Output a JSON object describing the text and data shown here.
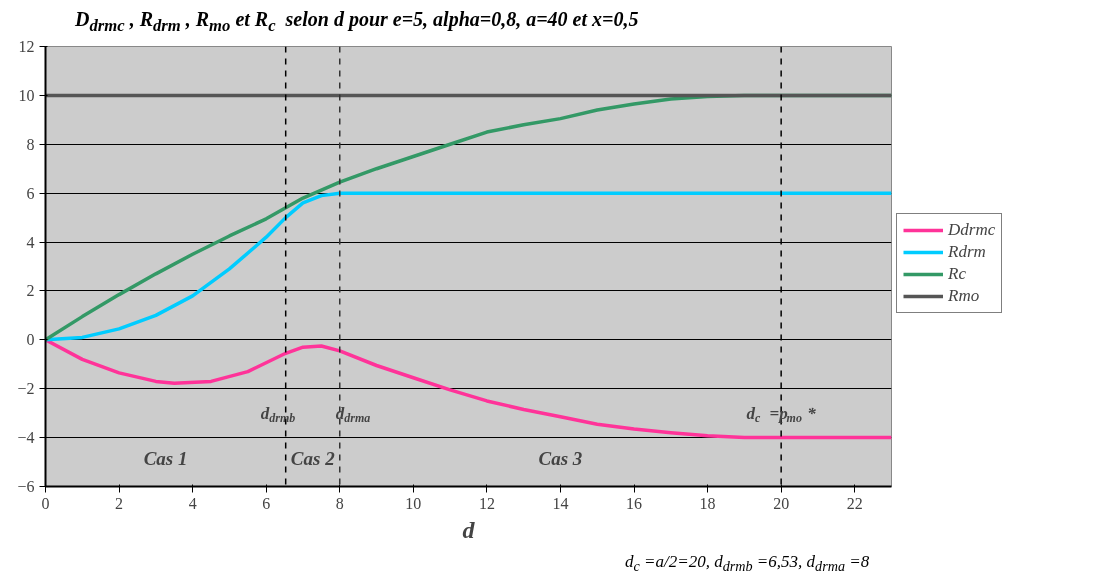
{
  "chart_data": {
    "type": "line",
    "title": "D$_{drmc}$ , R$_{drm}$ , R$_{mo}$ et R$_{c}$  selon d pour e=5, alpha=0,8, a=40 et x=0,5",
    "xlabel": "d",
    "xlim": [
      0,
      23
    ],
    "xticks": [
      0,
      2,
      4,
      6,
      8,
      10,
      12,
      14,
      16,
      18,
      20,
      22
    ],
    "ylim": [
      -6,
      12
    ],
    "yticks": [
      -6,
      -4,
      -2,
      0,
      2,
      4,
      6,
      8,
      10,
      12
    ],
    "grid": "y",
    "legend": "right",
    "line_style": "solid",
    "marker": "none",
    "series": [
      {
        "name": "Ddrmc",
        "color": "#ff3399",
        "x": [
          0,
          1,
          2,
          3,
          3.5,
          4.5,
          5.5,
          6.53,
          7,
          7.5,
          8,
          9,
          10,
          11,
          12,
          13,
          14,
          15,
          16,
          17,
          18,
          19,
          23
        ],
        "values": [
          0,
          -0.8,
          -1.35,
          -1.7,
          -1.78,
          -1.7,
          -1.3,
          -0.55,
          -0.3,
          -0.25,
          -0.45,
          -1.05,
          -1.55,
          -2.05,
          -2.5,
          -2.85,
          -3.15,
          -3.45,
          -3.65,
          -3.8,
          -3.92,
          -4,
          -4
        ]
      },
      {
        "name": "Rdrm",
        "color": "#00ccff",
        "x": [
          0,
          1,
          2,
          3,
          4,
          5,
          6,
          6.53,
          7,
          7.5,
          8,
          23
        ],
        "values": [
          0,
          0.1,
          0.45,
          1.0,
          1.8,
          2.9,
          4.2,
          5.0,
          5.6,
          5.9,
          6,
          6
        ]
      },
      {
        "name": "Rc",
        "color": "#339966",
        "x": [
          0,
          1,
          2,
          3,
          4,
          5,
          6,
          6.53,
          7,
          8,
          9,
          10,
          11,
          12,
          13,
          14,
          15,
          16,
          17,
          18,
          19,
          23
        ],
        "values": [
          0,
          0.95,
          1.85,
          2.7,
          3.5,
          4.25,
          4.95,
          5.4,
          5.8,
          6.45,
          7.0,
          7.5,
          8.0,
          8.5,
          8.8,
          9.05,
          9.4,
          9.65,
          9.85,
          9.95,
          10,
          10
        ]
      },
      {
        "name": "Rmo",
        "color": "#555555",
        "x": [
          0,
          23
        ],
        "values": [
          10,
          10
        ]
      }
    ],
    "ref_lines": [
      {
        "axis": "x",
        "value": 6.53,
        "label": "d$_{drmb}$",
        "line_style": "dashed",
        "color": "#000000"
      },
      {
        "axis": "x",
        "value": 8,
        "label": "d$_{drma}$",
        "line_style": "dashed",
        "color": "#333333"
      },
      {
        "axis": "x",
        "value": 20,
        "label": "d$_{c}$ =p$_{mo}$ *",
        "line_style": "dashed",
        "color": "#000000"
      }
    ],
    "annotations": [
      "Cas 1",
      "Cas 2",
      "Cas 3",
      "d$_{c}$ =a/2=20, d$_{drmb}$ =6,53, d$_{drma}$ =8"
    ]
  }
}
